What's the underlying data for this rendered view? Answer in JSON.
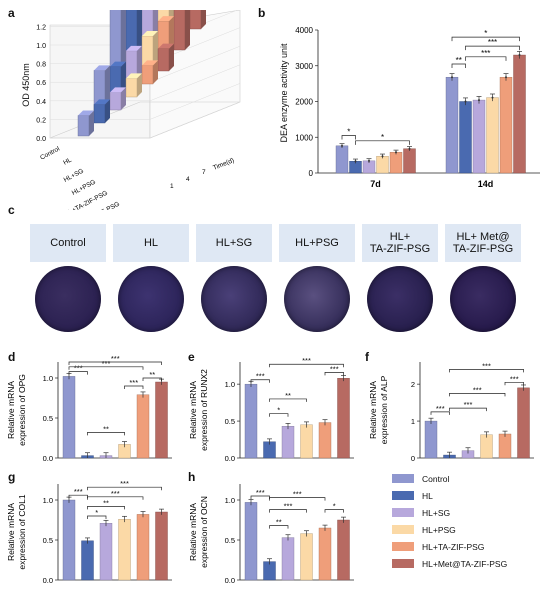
{
  "panels": {
    "a": "a",
    "b": "b",
    "c": "c",
    "d": "d",
    "e": "e",
    "f": "f",
    "g": "g",
    "h": "h"
  },
  "colors": [
    "#8f97cf",
    "#4a6ab0",
    "#b7a8dc",
    "#fbd9a6",
    "#ef9e7a",
    "#b76a62"
  ],
  "groups": [
    "Control",
    "HL",
    "HL+SG",
    "HL+PSG",
    "HL+TA-ZIF-PSG",
    "HL+Met@TA-ZIF-PSG"
  ],
  "panel_c": {
    "headers": [
      "Control",
      "HL",
      "HL+SG",
      "HL+PSG",
      "HL+\nTA-ZIF-PSG",
      "HL+ Met@\nTA-ZIF-PSG"
    ]
  },
  "chart_data": [
    {
      "id": "a",
      "type": "bar",
      "ylabel": "OD 450nm",
      "yticks": [
        "0.0",
        "0.2",
        "0.4",
        "0.6",
        "0.8",
        "1.0",
        "1.2"
      ],
      "categories": [
        "Control",
        "HL",
        "HL+SG",
        "HL+PSG",
        "HL+TA-ZIF-PSG",
        "HL+Met@TA-ZIF-PSG"
      ],
      "time_axis": "Time(d)",
      "time_labels": [
        "1",
        "4",
        "7"
      ],
      "series": [
        {
          "name": "1",
          "values": [
            0.22,
            0.2,
            0.19,
            0.2,
            0.2,
            0.24
          ]
        },
        {
          "name": "4",
          "values": [
            0.48,
            0.38,
            0.41,
            0.43,
            0.45,
            0.48
          ]
        },
        {
          "name": "7",
          "values": [
            1.2,
            0.8,
            0.79,
            0.79,
            0.8,
            1.1
          ]
        }
      ]
    },
    {
      "id": "b",
      "type": "bar",
      "ylabel": "DEA enzyme activity unit",
      "ylim": [
        0,
        4000
      ],
      "yticks": [
        "0",
        "1000",
        "2000",
        "3000",
        "4000"
      ],
      "categories": [
        "7d",
        "14d"
      ],
      "series": [
        {
          "name": "Control",
          "values": [
            760,
            2680
          ]
        },
        {
          "name": "HL",
          "values": [
            330,
            2000
          ]
        },
        {
          "name": "HL+SG",
          "values": [
            340,
            2040
          ]
        },
        {
          "name": "HL+PSG",
          "values": [
            470,
            2110
          ]
        },
        {
          "name": "HL+TA-ZIF-PSG",
          "values": [
            580,
            2680
          ]
        },
        {
          "name": "HL+Met@TA-ZIF-PSG",
          "values": [
            680,
            3300
          ]
        }
      ],
      "sig": [
        "*",
        "*",
        "**",
        "*",
        "***",
        "***"
      ]
    },
    {
      "id": "d",
      "type": "bar",
      "ylabel_line1": "Relative mRNA",
      "ylabel_line2": "expression of OPG",
      "ylim": [
        0,
        1.2
      ],
      "yticks": [
        "0.0",
        "0.5",
        "1.0"
      ],
      "values": [
        1.02,
        0.03,
        0.03,
        0.17,
        0.79,
        0.95
      ],
      "sig": [
        "***",
        "***",
        "***",
        "**",
        "***",
        "**"
      ]
    },
    {
      "id": "e",
      "type": "bar",
      "ylabel_line1": "Relative mRNA",
      "ylabel_line2": "expression of RUNX2",
      "ylim": [
        0,
        1.3
      ],
      "yticks": [
        "0.0",
        "0.5",
        "1.0"
      ],
      "values": [
        1.0,
        0.22,
        0.43,
        0.45,
        0.48,
        1.08
      ],
      "sig": [
        "***",
        "*",
        "**",
        "***",
        "***"
      ]
    },
    {
      "id": "f",
      "type": "bar",
      "ylabel_line1": "Relative mRNA",
      "ylabel_line2": "expression of ALP",
      "ylim": [
        0,
        2.6
      ],
      "yticks": [
        "0",
        "1",
        "2"
      ],
      "values": [
        1.0,
        0.08,
        0.2,
        0.63,
        0.65,
        1.9
      ],
      "sig": [
        "***",
        "***",
        "***",
        "***",
        "***"
      ]
    },
    {
      "id": "g",
      "type": "bar",
      "ylabel_line1": "Relative mRNA",
      "ylabel_line2": "expression of COL1",
      "ylim": [
        0,
        1.2
      ],
      "yticks": [
        "0.0",
        "0.5",
        "1.0"
      ],
      "values": [
        1.0,
        0.49,
        0.71,
        0.76,
        0.82,
        0.85
      ],
      "sig": [
        "***",
        "*",
        "**",
        "***",
        "***"
      ]
    },
    {
      "id": "h",
      "type": "bar",
      "ylabel_line1": "Relative mRNA",
      "ylabel_line2": "expression of OCN",
      "ylim": [
        0,
        1.2
      ],
      "yticks": [
        "0.0",
        "0.5",
        "1.0"
      ],
      "values": [
        0.97,
        0.23,
        0.53,
        0.58,
        0.65,
        0.75
      ],
      "sig": [
        "***",
        "**",
        "***",
        "***",
        "*"
      ]
    }
  ]
}
